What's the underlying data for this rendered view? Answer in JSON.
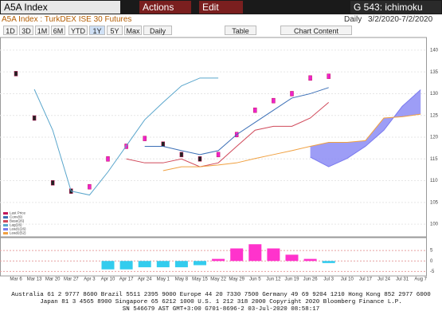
{
  "header": {
    "ticker": "A5A Index",
    "actions": "Actions",
    "edit": "Edit",
    "function": "G 543: ichimoku",
    "security": "A5A Index : TurkDEX ISE 30 Futures",
    "period": "Daily",
    "range": "3/2/2020-7/2/2020"
  },
  "toolbar": [
    "1D",
    "3D",
    "1M",
    "6M",
    "YTD",
    "1Y",
    "5Y",
    "Max",
    "Daily",
    "Table",
    "Chart Content"
  ],
  "chart_data": [
    {
      "type": "ichimoku",
      "categories": [
        "Mar 6",
        "Mar 13",
        "Mar 20",
        "Mar 27",
        "Apr 3",
        "Apr 10",
        "Apr 17",
        "Apr 24",
        "May 1",
        "May 8",
        "May 15",
        "May 22",
        "May 29",
        "Jun 5",
        "Jun 12",
        "Jun 19",
        "Jun 26",
        "Jul 3",
        "Jul 10",
        "Jul 17",
        "Jul 24",
        "Jul 31",
        "Aug 7"
      ],
      "series": [
        {
          "name": "Last Price",
          "color": "#c2185b",
          "values": [
            134.6,
            124.4,
            109.5,
            107.6,
            108.6,
            115,
            117.9,
            119.7,
            118.4,
            116,
            115,
            116,
            120.6,
            126.2,
            128.4,
            130,
            133.6,
            134,
            null,
            null,
            null,
            null,
            null
          ]
        },
        {
          "name": "Conv(9)",
          "color": "#3b6fb6",
          "values": [
            null,
            null,
            null,
            null,
            null,
            null,
            null,
            117.9,
            117.9,
            116.9,
            116,
            116.9,
            120.6,
            123.4,
            126.2,
            129,
            130,
            131.4,
            null,
            null,
            null,
            null,
            null
          ]
        },
        {
          "name": "Base(26)",
          "color": "#d0495a",
          "values": [
            null,
            null,
            null,
            null,
            null,
            null,
            115,
            114.1,
            114.1,
            115,
            113.2,
            114.1,
            117.9,
            121.6,
            122.5,
            122.5,
            124.4,
            128,
            null,
            null,
            null,
            null,
            null
          ]
        },
        {
          "name": "Lag(26)",
          "color": "#5aa6cc",
          "values": [
            null,
            131,
            121.6,
            107.6,
            106.7,
            112,
            118,
            124,
            128,
            131.8,
            133.6,
            133.6,
            null,
            null,
            null,
            null,
            null,
            null,
            null,
            null,
            null,
            null,
            null
          ]
        },
        {
          "name": "Lead1(26)",
          "color": "#7b7bef",
          "values": [
            null,
            null,
            null,
            null,
            null,
            null,
            null,
            null,
            null,
            null,
            null,
            null,
            null,
            null,
            null,
            null,
            115.4,
            113.2,
            115.1,
            117.9,
            121.6,
            127.1,
            130.9
          ]
        },
        {
          "name": "Lead2(52)",
          "color": "#f0a040",
          "values": [
            null,
            null,
            null,
            null,
            null,
            null,
            null,
            null,
            112.3,
            113.2,
            113.2,
            113.6,
            114.1,
            115.1,
            116,
            116.9,
            117.9,
            118.8,
            118.8,
            119.2,
            124.4,
            124.7,
            125.3
          ]
        }
      ],
      "cloud_color": "#8c8cf5",
      "ylim": [
        98,
        142
      ],
      "yticks": [
        100,
        105,
        110,
        115,
        120,
        125,
        130,
        135,
        140
      ],
      "grid": true
    },
    {
      "type": "bar",
      "values": [
        null,
        null,
        null,
        null,
        null,
        -4,
        -4,
        -3,
        -3,
        -3,
        -2,
        1,
        6,
        8,
        6,
        3,
        1,
        -1,
        null,
        null,
        null,
        null,
        null
      ],
      "positive_color": "#ff33cc",
      "negative_color": "#33ccee",
      "ylim": [
        -6,
        10
      ],
      "yticks": [
        -5,
        0,
        5
      ],
      "grid": true
    }
  ],
  "footer": [
    "Australia 61 2 9777 8600 Brazil 5511 2395 9000 Europe 44 20 7330 7500 Germany 49 69 9204 1210 Hong Kong 852 2977 6000",
    "Japan 81 3 4565 8900 Singapore 65 6212 1000 U.S. 1 212 318 2000 Copyright 2020 Bloomberg Finance L.P.",
    "SN 546679 AST GMT+3:00 G701-8696-2 03-Jul-2020 08:58:17"
  ]
}
